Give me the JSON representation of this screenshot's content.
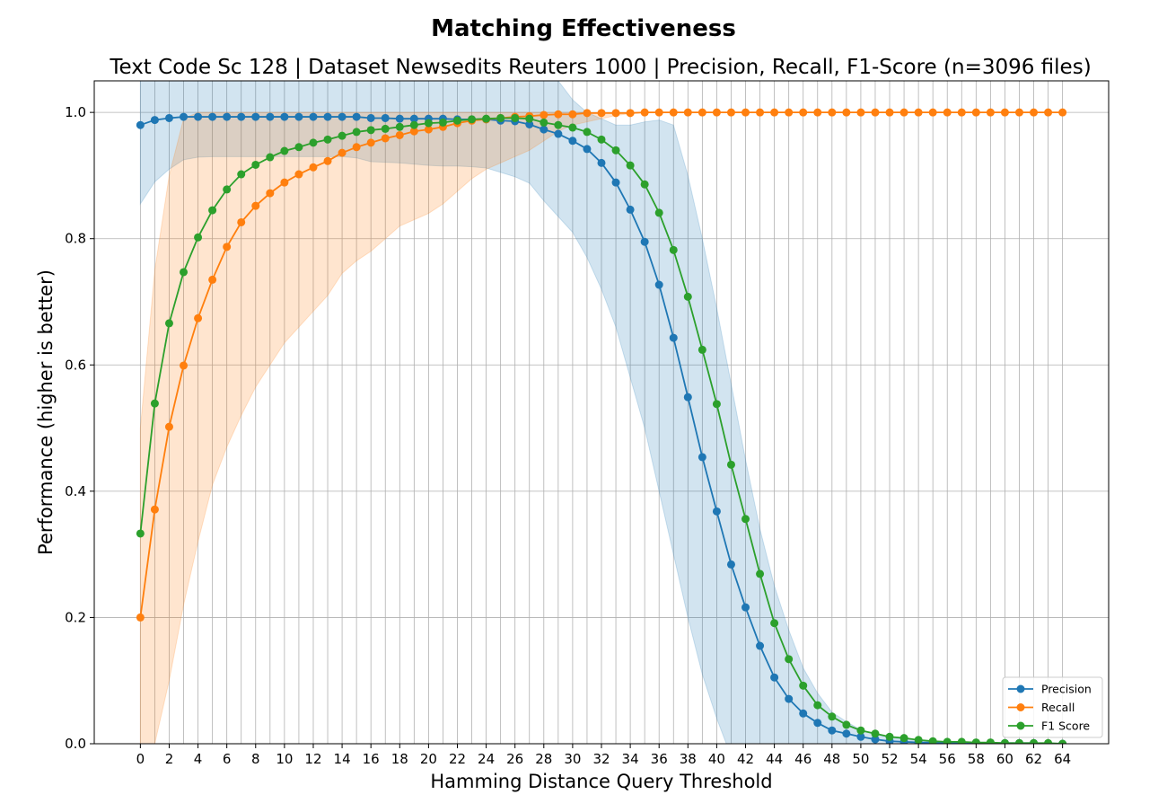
{
  "chart_data": {
    "type": "line",
    "title": "Matching Effectiveness",
    "subtitle": "Text Code Sc 128 | Dataset Newsedits Reuters 1000 | Precision, Recall, F1-Score (n=3096 files)",
    "xlabel": "Hamming Distance Query Threshold",
    "ylabel": "Performance (higher is better)",
    "xlim": [
      -3.2,
      67.2
    ],
    "ylim": [
      0,
      1.05
    ],
    "xticks": [
      0,
      2,
      4,
      6,
      8,
      10,
      12,
      14,
      16,
      18,
      20,
      22,
      24,
      26,
      28,
      30,
      32,
      34,
      36,
      38,
      40,
      42,
      44,
      46,
      48,
      50,
      52,
      54,
      56,
      58,
      60,
      62,
      64
    ],
    "yticks": [
      0.0,
      0.2,
      0.4,
      0.6,
      0.8,
      1.0
    ],
    "ytick_labels": [
      "0.0",
      "0.2",
      "0.4",
      "0.6",
      "0.8",
      "1.0"
    ],
    "grid": true,
    "legend_position": "bottom-right",
    "x": [
      0,
      1,
      2,
      3,
      4,
      5,
      6,
      7,
      8,
      9,
      10,
      11,
      12,
      13,
      14,
      15,
      16,
      17,
      18,
      19,
      20,
      21,
      22,
      23,
      24,
      25,
      26,
      27,
      28,
      29,
      30,
      31,
      32,
      33,
      34,
      35,
      36,
      37,
      38,
      39,
      40,
      41,
      42,
      43,
      44,
      45,
      46,
      47,
      48,
      49,
      50,
      51,
      52,
      53,
      54,
      55,
      56,
      57,
      58,
      59,
      60,
      61,
      62,
      63,
      64
    ],
    "series": [
      {
        "name": "Precision",
        "color": "#1f77b4",
        "values": [
          0.98,
          0.988,
          0.991,
          0.993,
          0.993,
          0.993,
          0.993,
          0.993,
          0.993,
          0.993,
          0.993,
          0.993,
          0.993,
          0.993,
          0.993,
          0.993,
          0.991,
          0.991,
          0.99,
          0.99,
          0.99,
          0.99,
          0.989,
          0.989,
          0.989,
          0.987,
          0.986,
          0.981,
          0.973,
          0.966,
          0.955,
          0.942,
          0.92,
          0.889,
          0.846,
          0.795,
          0.727,
          0.643,
          0.549,
          0.454,
          0.368,
          0.284,
          0.216,
          0.155,
          0.105,
          0.071,
          0.048,
          0.033,
          0.021,
          0.016,
          0.011,
          0.007,
          0.004,
          0.003,
          0.002,
          0.002,
          0.001,
          0.001,
          0.001,
          0.001,
          0.001,
          0.001,
          0.001,
          0.0,
          0.0
        ],
        "band_lower": [
          0.855,
          0.89,
          0.91,
          0.925,
          0.929,
          0.93,
          0.93,
          0.93,
          0.93,
          0.93,
          0.93,
          0.93,
          0.93,
          0.93,
          0.93,
          0.928,
          0.922,
          0.921,
          0.92,
          0.918,
          0.916,
          0.915,
          0.915,
          0.914,
          0.912,
          0.905,
          0.898,
          0.888,
          0.86,
          0.835,
          0.81,
          0.77,
          0.72,
          0.66,
          0.58,
          0.5,
          0.4,
          0.3,
          0.2,
          0.11,
          0.04,
          -0.02,
          -0.1,
          -0.15,
          -0.1,
          -0.07,
          -0.05,
          -0.03,
          -0.02,
          -0.01,
          -0.01,
          0,
          0,
          0,
          0,
          0,
          0,
          0,
          0,
          0,
          0,
          0,
          0,
          0,
          0
        ],
        "band_upper": [
          1.05,
          1.05,
          1.05,
          1.05,
          1.05,
          1.05,
          1.05,
          1.05,
          1.05,
          1.05,
          1.05,
          1.05,
          1.05,
          1.05,
          1.05,
          1.05,
          1.05,
          1.05,
          1.05,
          1.05,
          1.05,
          1.05,
          1.05,
          1.05,
          1.05,
          1.05,
          1.05,
          1.05,
          1.05,
          1.05,
          1.02,
          1.0,
          0.99,
          0.98,
          0.98,
          0.985,
          0.988,
          0.98,
          0.9,
          0.8,
          0.69,
          0.57,
          0.45,
          0.34,
          0.25,
          0.18,
          0.12,
          0.08,
          0.05,
          0.035,
          0.022,
          0.015,
          0.01,
          0.007,
          0.005,
          0.004,
          0.003,
          0.002,
          0.002,
          0.002,
          0.001,
          0.001,
          0.001,
          0.001,
          0.001
        ]
      },
      {
        "name": "Recall",
        "color": "#ff7f0e",
        "values": [
          0.2,
          0.371,
          0.502,
          0.599,
          0.674,
          0.735,
          0.787,
          0.826,
          0.852,
          0.872,
          0.889,
          0.902,
          0.913,
          0.923,
          0.936,
          0.945,
          0.952,
          0.959,
          0.964,
          0.97,
          0.973,
          0.977,
          0.983,
          0.987,
          0.989,
          0.991,
          0.993,
          0.994,
          0.996,
          0.997,
          0.997,
          0.999,
          0.999,
          0.999,
          0.999,
          1.0,
          1.0,
          1.0,
          1.0,
          1.0,
          1.0,
          1.0,
          1.0,
          1.0,
          1.0,
          1.0,
          1.0,
          1.0,
          1.0,
          1.0,
          1.0,
          1.0,
          1.0,
          1.0,
          1.0,
          1.0,
          1.0,
          1.0,
          1.0,
          1.0,
          1.0,
          1.0,
          1.0,
          1.0,
          1.0
        ],
        "band_lower": [
          -0.1,
          0.0,
          0.1,
          0.22,
          0.32,
          0.41,
          0.47,
          0.52,
          0.565,
          0.6,
          0.635,
          0.66,
          0.685,
          0.71,
          0.745,
          0.765,
          0.78,
          0.8,
          0.82,
          0.83,
          0.84,
          0.855,
          0.875,
          0.895,
          0.91,
          0.92,
          0.93,
          0.94,
          0.955,
          0.97,
          0.98,
          0.985,
          0.99,
          0.995,
          0.998,
          1.0,
          1.0,
          1.0,
          1.0,
          1.0,
          1.0,
          1.0,
          1.0,
          1.0,
          1.0,
          1.0,
          1.0,
          1.0,
          1.0,
          1.0,
          1.0,
          1.0,
          1.0,
          1.0,
          1.0,
          1.0,
          1.0,
          1.0,
          1.0,
          1.0,
          1.0,
          1.0,
          1.0,
          1.0,
          1.0
        ],
        "band_upper": [
          0.5,
          0.75,
          0.9,
          0.99,
          1.0,
          1.0,
          1.0,
          1.0,
          1.0,
          1.0,
          1.0,
          1.0,
          1.0,
          1.0,
          1.0,
          1.0,
          1.0,
          1.0,
          1.0,
          1.0,
          1.0,
          1.0,
          1.0,
          1.0,
          1.0,
          1.0,
          1.0,
          1.0,
          1.0,
          1.0,
          1.0,
          1.0,
          1.0,
          1.0,
          1.0,
          1.0,
          1.0,
          1.0,
          1.0,
          1.0,
          1.0,
          1.0,
          1.0,
          1.0,
          1.0,
          1.0,
          1.0,
          1.0,
          1.0,
          1.0,
          1.0,
          1.0,
          1.0,
          1.0,
          1.0,
          1.0,
          1.0,
          1.0,
          1.0,
          1.0,
          1.0,
          1.0,
          1.0,
          1.0,
          1.0
        ]
      },
      {
        "name": "F1 Score",
        "color": "#2ca02c",
        "values": [
          0.333,
          0.539,
          0.666,
          0.747,
          0.802,
          0.845,
          0.878,
          0.902,
          0.917,
          0.929,
          0.939,
          0.945,
          0.952,
          0.957,
          0.963,
          0.969,
          0.972,
          0.974,
          0.977,
          0.98,
          0.983,
          0.984,
          0.987,
          0.989,
          0.99,
          0.991,
          0.991,
          0.99,
          0.984,
          0.98,
          0.976,
          0.969,
          0.957,
          0.94,
          0.916,
          0.886,
          0.841,
          0.782,
          0.708,
          0.624,
          0.538,
          0.442,
          0.356,
          0.269,
          0.191,
          0.134,
          0.092,
          0.061,
          0.043,
          0.03,
          0.021,
          0.016,
          0.011,
          0.009,
          0.006,
          0.004,
          0.003,
          0.003,
          0.002,
          0.002,
          0.001,
          0.001,
          0.001,
          0.001,
          0.0
        ]
      }
    ]
  }
}
